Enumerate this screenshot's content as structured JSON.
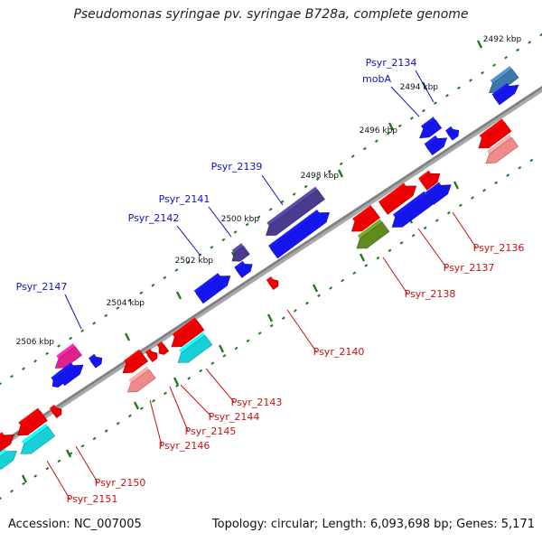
{
  "title": "Pseudomonas syringae pv. syringae B728a, complete genome",
  "footer": {
    "accession": "Accession: NC_007005",
    "stats": "Topology: circular; Length: 6,093,698 bp; Genes: 5,171"
  },
  "colors": {
    "backbone": "#7f7f7f",
    "tick": "#1a7a1a",
    "label_blue": "#1010c8",
    "label_red": "#c81010",
    "gene_red": "#ee0000",
    "gene_pink": "#ee8a8a",
    "gene_blue": "#1515ee",
    "gene_navy": "#4a3b8c",
    "gene_olive": "#5f8a1f",
    "gene_cyan": "#18d0d8",
    "gene_magenta": "#e0208e",
    "gene_steel": "#3f78a8",
    "gene_purple": "#5a3fb0"
  },
  "kbp_labels": [
    "2492 kbp",
    "2494 kbp",
    "2496 kbp",
    "2498 kbp",
    "2500 kbp",
    "2502 kbp",
    "2504 kbp",
    "2506 kbp"
  ],
  "gene_labels_top": [
    "Psyr_2134",
    "mobA",
    "Psyr_2139",
    "Psyr_2141",
    "Psyr_2142",
    "Psyr_2147"
  ],
  "gene_labels_bottom": [
    "Psyr_2136",
    "Psyr_2137",
    "Psyr_2138",
    "Psyr_2140",
    "Psyr_2143",
    "Psyr_2144",
    "Psyr_2145",
    "Psyr_2146",
    "Psyr_2150",
    "Psyr_2151"
  ]
}
